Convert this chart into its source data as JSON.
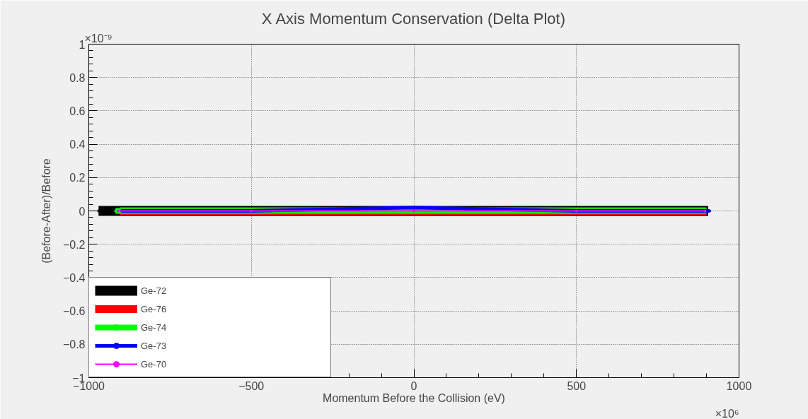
{
  "chart_data": {
    "type": "line",
    "title": "X Axis Momentum Conservation (Delta Plot)",
    "xlabel": "Momentum Before the Collision (eV)",
    "ylabel": "(Before-After)/Before",
    "annotations": [
      "×10⁻⁹",
      "×10⁶"
    ],
    "xlim": [
      -1000,
      1000
    ],
    "xticks": [
      {
        "value": -1000,
        "label": "−1000"
      },
      {
        "value": -500,
        "label": "−500"
      },
      0,
      500,
      1000
    ],
    "ylim": [
      -1,
      1
    ],
    "yticks": [
      {
        "value": -1,
        "label": "−1"
      },
      {
        "value": -0.8,
        "label": "−0.8"
      },
      {
        "value": -0.6,
        "label": "−0.6"
      },
      {
        "value": -0.4,
        "label": "−0.4"
      },
      {
        "value": -0.2,
        "label": "−0.2"
      },
      0,
      0.2,
      0.4,
      0.6,
      0.8,
      1
    ],
    "grid": true,
    "legend": "bottom left",
    "marker": "circle",
    "line_style": "solid",
    "series": [
      {
        "name": "Ge-72",
        "color": "#000000",
        "x": [
          -970,
          -500,
          0,
          500,
          905
        ],
        "values": [
          0,
          0,
          0,
          0,
          0
        ]
      },
      {
        "name": "Ge-76",
        "color": "#ff0000",
        "x": [
          -905,
          -500,
          0,
          500,
          900
        ],
        "values": [
          0,
          0,
          0,
          0,
          0
        ]
      },
      {
        "name": "Ge-74",
        "color": "#00ff00",
        "x": [
          -918,
          -500,
          0,
          500,
          900
        ],
        "values": [
          0,
          0,
          0,
          0,
          0
        ]
      },
      {
        "name": "Ge-73",
        "color": "#0000ff",
        "x": [
          -900,
          -500,
          0,
          500,
          910
        ],
        "values": [
          0,
          0,
          0.02,
          0,
          0
        ]
      },
      {
        "name": "Ge-70",
        "color": "#ff00ff",
        "x": [
          -910,
          -500,
          0,
          500,
          895
        ],
        "values": [
          0,
          0,
          0,
          0,
          0
        ]
      }
    ]
  }
}
